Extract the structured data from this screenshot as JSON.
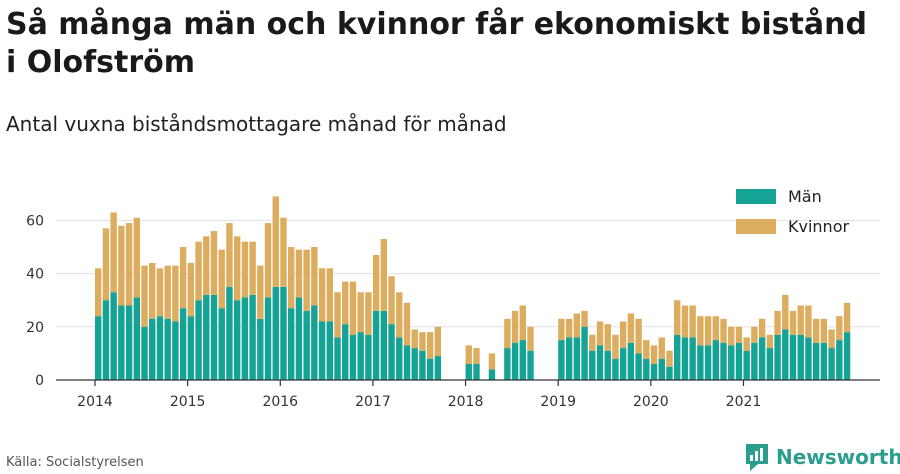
{
  "title": "Så många män och kvinnor får ekonomiskt bistånd i Olofström",
  "subtitle": "Antal vuxna biståndsmottagare månad för månad",
  "source": "Källa: Socialstyrelsen",
  "brand": "Newsworthy",
  "colors": {
    "men": "#14a394",
    "women": "#dcad5e",
    "grid": "#e1e1e1",
    "brand": "#2a9d8f"
  },
  "chart_data": {
    "type": "bar",
    "stacked": true,
    "x_start": "2014-01",
    "ylim": [
      0,
      70
    ],
    "y_ticks": [
      0,
      20,
      40,
      60
    ],
    "x_tick_labels": [
      "2014",
      "2015",
      "2016",
      "2017",
      "2018",
      "2019",
      "2020",
      "2021"
    ],
    "legend_position": "top-right",
    "series": [
      {
        "name": "Män",
        "values": [
          24,
          30,
          33,
          28,
          28,
          31,
          20,
          23,
          24,
          23,
          22,
          27,
          24,
          30,
          32,
          32,
          27,
          35,
          30,
          31,
          32,
          23,
          31,
          35,
          35,
          27,
          31,
          26,
          28,
          22,
          22,
          16,
          21,
          17,
          18,
          17,
          26,
          26,
          21,
          16,
          13,
          12,
          11,
          8,
          9,
          null,
          null,
          null,
          6,
          6,
          null,
          4,
          null,
          12,
          14,
          15,
          11,
          null,
          null,
          null,
          15,
          16,
          16,
          20,
          11,
          13,
          11,
          8,
          12,
          14,
          10,
          8,
          6,
          8,
          5,
          17,
          16,
          16,
          13,
          13,
          15,
          14,
          13,
          14,
          11,
          14,
          16,
          12,
          17,
          19,
          17,
          17,
          16,
          14,
          14,
          12,
          15,
          18
        ]
      },
      {
        "name": "Kvinnor",
        "values": [
          18,
          27,
          30,
          30,
          31,
          30,
          23,
          21,
          18,
          20,
          21,
          23,
          20,
          22,
          22,
          24,
          22,
          24,
          24,
          21,
          20,
          20,
          28,
          34,
          26,
          23,
          18,
          23,
          22,
          20,
          20,
          17,
          16,
          20,
          15,
          16,
          21,
          27,
          18,
          17,
          16,
          7,
          7,
          10,
          11,
          null,
          null,
          null,
          7,
          6,
          null,
          6,
          null,
          11,
          12,
          13,
          9,
          null,
          null,
          null,
          8,
          7,
          9,
          6,
          6,
          9,
          10,
          9,
          10,
          11,
          13,
          7,
          7,
          8,
          6,
          13,
          12,
          12,
          11,
          11,
          9,
          9,
          7,
          6,
          5,
          6,
          7,
          5,
          9,
          13,
          9,
          11,
          12,
          9,
          9,
          7,
          9,
          11
        ]
      }
    ]
  }
}
